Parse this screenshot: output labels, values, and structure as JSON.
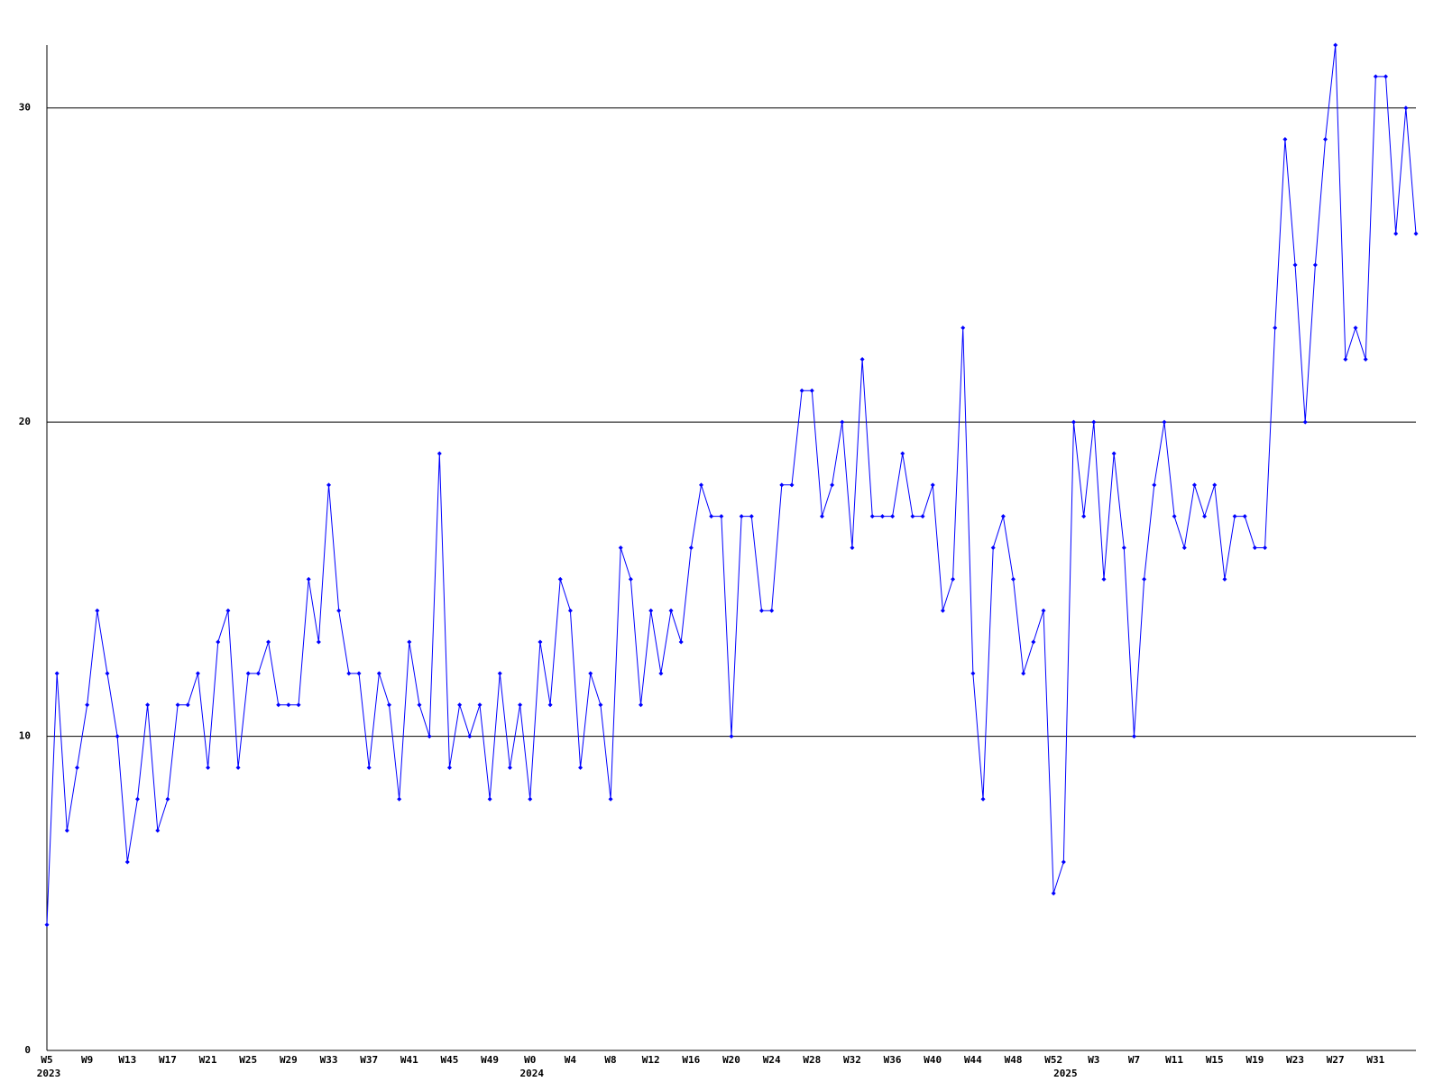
{
  "chart_data": {
    "type": "line",
    "categories": [
      "W5",
      null,
      null,
      null,
      "W9",
      null,
      null,
      null,
      "W13",
      null,
      null,
      null,
      "W17",
      null,
      null,
      null,
      "W21",
      null,
      null,
      null,
      "W25",
      null,
      null,
      null,
      "W29",
      null,
      null,
      null,
      "W33",
      null,
      null,
      null,
      "W37",
      null,
      null,
      null,
      "W41",
      null,
      null,
      null,
      "W45",
      null,
      null,
      null,
      "W49",
      null,
      null,
      null,
      "W0",
      null,
      null,
      null,
      "W4",
      null,
      null,
      null,
      "W8",
      null,
      null,
      null,
      "W12",
      null,
      null,
      null,
      "W16",
      null,
      null,
      null,
      "W20",
      null,
      null,
      null,
      "W24",
      null,
      null,
      null,
      "W28",
      null,
      null,
      null,
      "W32",
      null,
      null,
      null,
      "W36",
      null,
      null,
      null,
      "W40",
      null,
      null,
      null,
      "W44",
      null,
      null,
      null,
      "W48",
      null,
      null,
      null,
      "W52",
      null,
      null,
      null,
      "W3",
      null,
      null,
      null,
      "W7",
      null,
      null,
      null,
      "W11",
      null,
      null,
      null,
      "W15",
      null,
      null,
      null,
      "W19",
      null,
      null,
      null,
      "W23",
      null,
      null,
      null,
      "W27",
      null,
      null,
      null,
      "W31",
      null,
      null,
      null,
      null
    ],
    "category_years": [
      "2023",
      null,
      null,
      null,
      null,
      null,
      null,
      null,
      null,
      null,
      null,
      null,
      null,
      null,
      null,
      null,
      null,
      null,
      null,
      null,
      null,
      null,
      null,
      null,
      null,
      null,
      null,
      null,
      null,
      null,
      null,
      null,
      null,
      null,
      null,
      null,
      null,
      null,
      null,
      null,
      null,
      null,
      null,
      null,
      null,
      null,
      null,
      null,
      "2024",
      null,
      null,
      null,
      null,
      null,
      null,
      null,
      null,
      null,
      null,
      null,
      null,
      null,
      null,
      null,
      null,
      null,
      null,
      null,
      null,
      null,
      null,
      null,
      null,
      null,
      null,
      null,
      null,
      null,
      null,
      null,
      null,
      null,
      null,
      null,
      null,
      null,
      null,
      null,
      null,
      null,
      null,
      null,
      null,
      null,
      null,
      null,
      null,
      null,
      null,
      null,
      null,
      "2025",
      null,
      null,
      null,
      null,
      null,
      null,
      null,
      null,
      null,
      null,
      null,
      null,
      null,
      null,
      null,
      null,
      null,
      null,
      null,
      null,
      null,
      null,
      null,
      null,
      null,
      null,
      null,
      null,
      null,
      null,
      null,
      null,
      null,
      null,
      null
    ],
    "values": [
      4,
      12,
      7,
      9,
      11,
      14,
      12,
      10,
      6,
      8,
      11,
      7,
      8,
      11,
      11,
      12,
      9,
      13,
      14,
      9,
      12,
      12,
      13,
      11,
      11,
      11,
      15,
      13,
      18,
      14,
      12,
      12,
      9,
      12,
      11,
      8,
      13,
      11,
      10,
      19,
      9,
      11,
      10,
      11,
      8,
      12,
      9,
      11,
      8,
      13,
      11,
      15,
      14,
      9,
      12,
      11,
      8,
      16,
      15,
      11,
      14,
      12,
      14,
      13,
      16,
      18,
      17,
      17,
      10,
      17,
      17,
      14,
      14,
      18,
      18,
      21,
      21,
      17,
      18,
      20,
      16,
      22,
      17,
      17,
      17,
      19,
      17,
      17,
      18,
      14,
      15,
      23,
      12,
      8,
      16,
      17,
      15,
      12,
      13,
      14,
      5,
      6,
      20,
      17,
      20,
      15,
      19,
      16,
      10,
      15,
      18,
      20,
      17,
      16,
      18,
      17,
      18,
      15,
      17,
      17,
      16,
      16,
      23,
      29,
      25,
      20,
      25,
      29,
      32,
      22,
      23,
      22,
      31,
      31,
      26,
      30,
      26
    ],
    "color": "#0000ff",
    "ylim": [
      0,
      32
    ],
    "yticks": [
      0,
      10,
      20,
      30
    ],
    "grid": true
  }
}
